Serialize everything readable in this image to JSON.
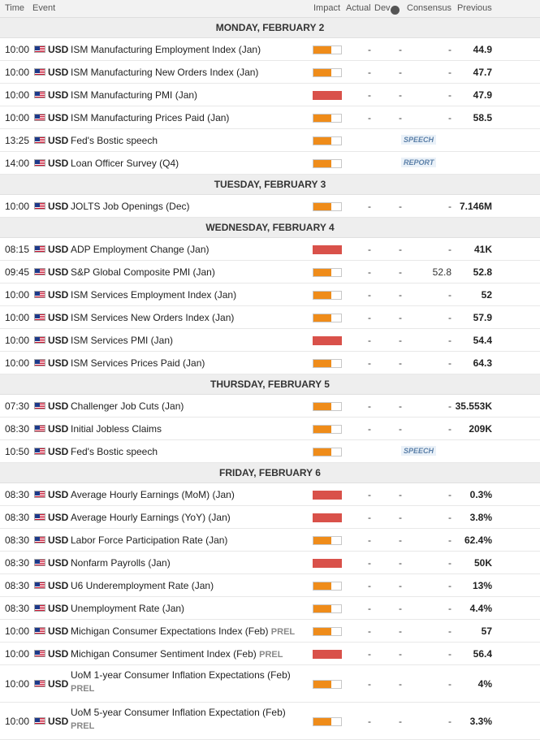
{
  "header": {
    "time": "Time",
    "event": "Event",
    "impact": "Impact",
    "actual": "Actual",
    "dev": "Dev",
    "consensus": "Consensus",
    "previous": "Previous",
    "info_icon": "info-icon"
  },
  "colors": {
    "high": "#d9514a",
    "medium": "#ef8c1a"
  },
  "sections": [
    {
      "day": "MONDAY, FEBRUARY 2",
      "rows": [
        {
          "time": "10:00",
          "cur": "USD",
          "event": "ISM Manufacturing Employment Index (Jan)",
          "impact": "medium",
          "actual": "-",
          "dev": "-",
          "consensus": "-",
          "previous": "44.9"
        },
        {
          "time": "10:00",
          "cur": "USD",
          "event": "ISM Manufacturing New Orders Index (Jan)",
          "impact": "medium",
          "actual": "-",
          "dev": "-",
          "consensus": "-",
          "previous": "47.7"
        },
        {
          "time": "10:00",
          "cur": "USD",
          "event": "ISM Manufacturing PMI (Jan)",
          "impact": "high",
          "actual": "-",
          "dev": "-",
          "consensus": "-",
          "previous": "47.9"
        },
        {
          "time": "10:00",
          "cur": "USD",
          "event": "ISM Manufacturing Prices Paid (Jan)",
          "impact": "medium",
          "actual": "-",
          "dev": "-",
          "consensus": "-",
          "previous": "58.5"
        },
        {
          "time": "13:25",
          "cur": "USD",
          "event": "Fed's Bostic speech",
          "impact": "medium",
          "tag": "SPEECH"
        },
        {
          "time": "14:00",
          "cur": "USD",
          "event": "Loan Officer Survey (Q4)",
          "impact": "medium",
          "tag": "REPORT"
        }
      ]
    },
    {
      "day": "TUESDAY, FEBRUARY 3",
      "rows": [
        {
          "time": "10:00",
          "cur": "USD",
          "event": "JOLTS Job Openings (Dec)",
          "impact": "medium",
          "actual": "-",
          "dev": "-",
          "consensus": "-",
          "previous": "7.146M"
        }
      ]
    },
    {
      "day": "WEDNESDAY, FEBRUARY 4",
      "rows": [
        {
          "time": "08:15",
          "cur": "USD",
          "event": "ADP Employment Change (Jan)",
          "impact": "high",
          "actual": "-",
          "dev": "-",
          "consensus": "-",
          "previous": "41K"
        },
        {
          "time": "09:45",
          "cur": "USD",
          "event": "S&P Global Composite PMI (Jan)",
          "impact": "medium",
          "actual": "-",
          "dev": "-",
          "consensus": "52.8",
          "previous": "52.8"
        },
        {
          "time": "10:00",
          "cur": "USD",
          "event": "ISM Services Employment Index (Jan)",
          "impact": "medium",
          "actual": "-",
          "dev": "-",
          "consensus": "-",
          "previous": "52"
        },
        {
          "time": "10:00",
          "cur": "USD",
          "event": "ISM Services New Orders Index (Jan)",
          "impact": "medium",
          "actual": "-",
          "dev": "-",
          "consensus": "-",
          "previous": "57.9"
        },
        {
          "time": "10:00",
          "cur": "USD",
          "event": "ISM Services PMI (Jan)",
          "impact": "high",
          "actual": "-",
          "dev": "-",
          "consensus": "-",
          "previous": "54.4"
        },
        {
          "time": "10:00",
          "cur": "USD",
          "event": "ISM Services Prices Paid (Jan)",
          "impact": "medium",
          "actual": "-",
          "dev": "-",
          "consensus": "-",
          "previous": "64.3"
        }
      ]
    },
    {
      "day": "THURSDAY, FEBRUARY 5",
      "rows": [
        {
          "time": "07:30",
          "cur": "USD",
          "event": "Challenger Job Cuts (Jan)",
          "impact": "medium",
          "actual": "-",
          "dev": "-",
          "consensus": "-",
          "previous": "35.553K"
        },
        {
          "time": "08:30",
          "cur": "USD",
          "event": "Initial Jobless Claims",
          "impact": "medium",
          "actual": "-",
          "dev": "-",
          "consensus": "-",
          "previous": "209K"
        },
        {
          "time": "10:50",
          "cur": "USD",
          "event": "Fed's Bostic speech",
          "impact": "medium",
          "tag": "SPEECH"
        }
      ]
    },
    {
      "day": "FRIDAY, FEBRUARY 6",
      "rows": [
        {
          "time": "08:30",
          "cur": "USD",
          "event": "Average Hourly Earnings (MoM) (Jan)",
          "impact": "high",
          "actual": "-",
          "dev": "-",
          "consensus": "-",
          "previous": "0.3%"
        },
        {
          "time": "08:30",
          "cur": "USD",
          "event": "Average Hourly Earnings (YoY) (Jan)",
          "impact": "high",
          "actual": "-",
          "dev": "-",
          "consensus": "-",
          "previous": "3.8%"
        },
        {
          "time": "08:30",
          "cur": "USD",
          "event": "Labor Force Participation Rate (Jan)",
          "impact": "medium",
          "actual": "-",
          "dev": "-",
          "consensus": "-",
          "previous": "62.4%"
        },
        {
          "time": "08:30",
          "cur": "USD",
          "event": "Nonfarm Payrolls (Jan)",
          "impact": "high",
          "actual": "-",
          "dev": "-",
          "consensus": "-",
          "previous": "50K"
        },
        {
          "time": "08:30",
          "cur": "USD",
          "event": "U6 Underemployment Rate (Jan)",
          "impact": "medium",
          "actual": "-",
          "dev": "-",
          "consensus": "-",
          "previous": "13%"
        },
        {
          "time": "08:30",
          "cur": "USD",
          "event": "Unemployment Rate (Jan)",
          "impact": "medium",
          "actual": "-",
          "dev": "-",
          "consensus": "-",
          "previous": "4.4%"
        },
        {
          "time": "10:00",
          "cur": "USD",
          "event": "Michigan Consumer Expectations Index (Feb)",
          "prel": "PREL",
          "impact": "medium",
          "actual": "-",
          "dev": "-",
          "consensus": "-",
          "previous": "57"
        },
        {
          "time": "10:00",
          "cur": "USD",
          "event": "Michigan Consumer Sentiment Index (Feb)",
          "prel": "PREL",
          "impact": "high",
          "actual": "-",
          "dev": "-",
          "consensus": "-",
          "previous": "56.4"
        },
        {
          "time": "10:00",
          "cur": "USD",
          "event": "UoM 1-year Consumer Inflation Expectations (Feb)",
          "prel": "PREL",
          "tall": true,
          "impact": "medium",
          "actual": "-",
          "dev": "-",
          "consensus": "-",
          "previous": "4%"
        },
        {
          "time": "10:00",
          "cur": "USD",
          "event": "UoM 5-year Consumer Inflation Expectation (Feb)",
          "prel": "PREL",
          "tall": true,
          "impact": "medium",
          "actual": "-",
          "dev": "-",
          "consensus": "-",
          "previous": "3.3%"
        }
      ]
    }
  ]
}
